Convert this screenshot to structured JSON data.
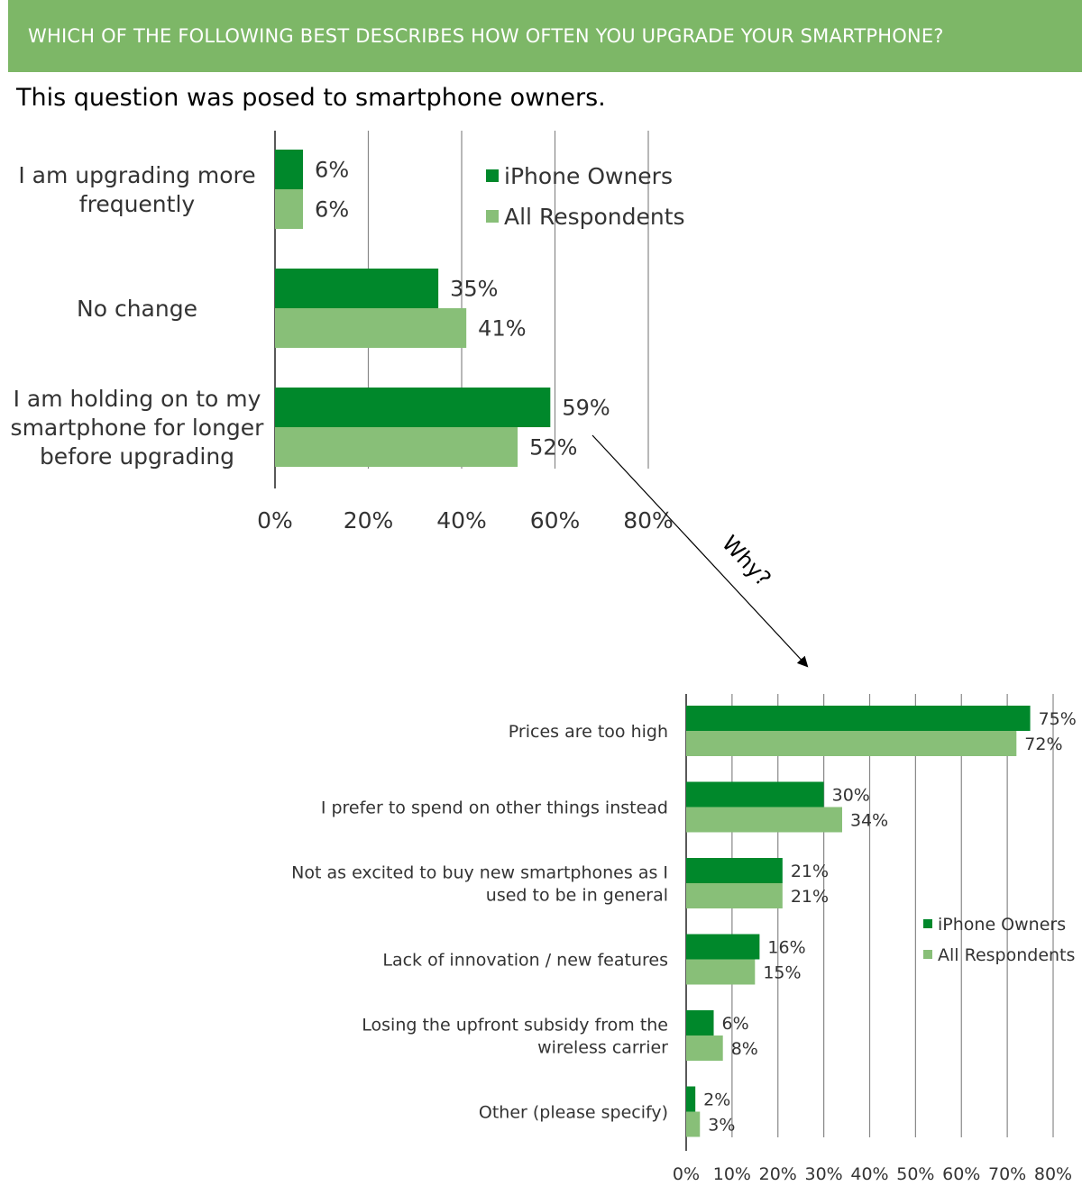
{
  "header": {
    "title": "WHICH OF THE FOLLOWING BEST DESCRIBES HOW OFTEN YOU UPGRADE YOUR SMARTPHONE?",
    "subtitle": "This question was posed to smartphone owners."
  },
  "annotation": "Why?",
  "colors": {
    "banner": "#7db767",
    "iphone": "#00882b",
    "all": "#88bf78",
    "grid": "#888888"
  },
  "chart_data": [
    {
      "type": "bar",
      "orientation": "horizontal",
      "categories": [
        [
          "I am upgrading more",
          "frequently"
        ],
        [
          "No change"
        ],
        [
          "I am holding on to my",
          "smartphone for longer",
          "before upgrading"
        ]
      ],
      "series": [
        {
          "name": "iPhone Owners",
          "values": [
            6,
            35,
            59
          ],
          "labels": [
            "6%",
            "35%",
            "59%"
          ]
        },
        {
          "name": "All Respondents",
          "values": [
            6,
            41,
            52
          ],
          "labels": [
            "6%",
            "41%",
            "52%"
          ]
        }
      ],
      "xlim": [
        0,
        80
      ],
      "xticks": [
        "0%",
        "20%",
        "40%",
        "60%",
        "80%"
      ],
      "grid": true,
      "legend": "top-right"
    },
    {
      "type": "bar",
      "orientation": "horizontal",
      "categories": [
        [
          "Prices are too high"
        ],
        [
          "I prefer to spend on other things instead"
        ],
        [
          "Not as excited to buy new smartphones as I",
          "used to be in general"
        ],
        [
          "Lack of innovation / new features"
        ],
        [
          "Losing the upfront subsidy from the",
          "wireless carrier"
        ],
        [
          "Other (please specify)"
        ]
      ],
      "series": [
        {
          "name": "iPhone Owners",
          "values": [
            75,
            30,
            21,
            16,
            6,
            2
          ],
          "labels": [
            "75%",
            "30%",
            "21%",
            "16%",
            "6%",
            "2%"
          ]
        },
        {
          "name": "All Respondents",
          "values": [
            72,
            34,
            21,
            15,
            8,
            3
          ],
          "labels": [
            "72%",
            "34%",
            "21%",
            "15%",
            "8%",
            "3%"
          ]
        }
      ],
      "xlim": [
        0,
        80
      ],
      "xticks": [
        "0%",
        "10%",
        "20%",
        "30%",
        "40%",
        "50%",
        "60%",
        "70%",
        "80%"
      ],
      "grid": true,
      "legend": "right"
    }
  ]
}
